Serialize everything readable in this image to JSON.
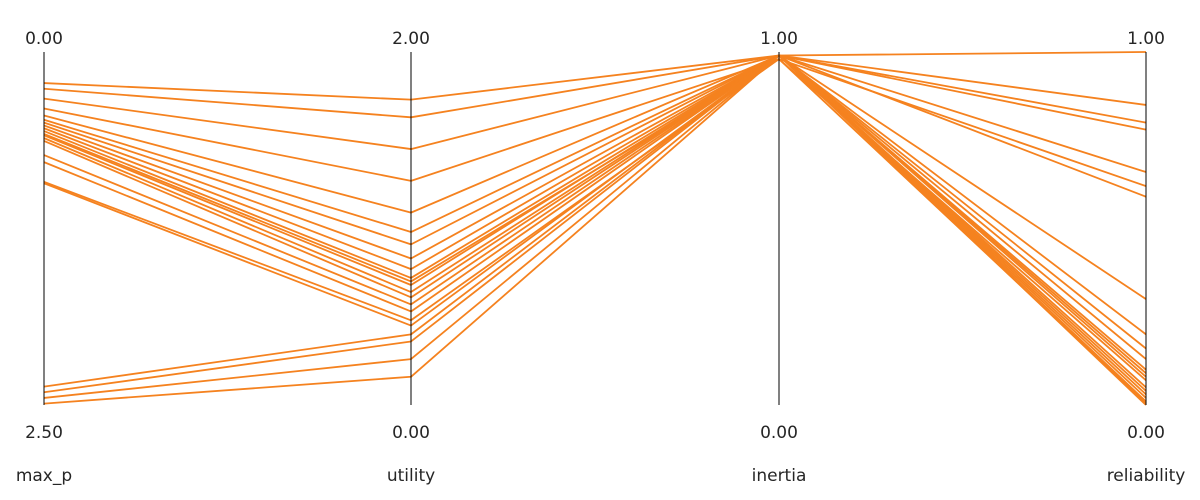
{
  "chart_data": {
    "type": "parallel_coordinates",
    "line_color": "#f5821f",
    "axes": [
      {
        "name": "max_p",
        "top": 0.0,
        "bottom": 2.5,
        "top_label": "0.00",
        "bottom_label": "2.50"
      },
      {
        "name": "utility",
        "top": 2.0,
        "bottom": 0.0,
        "top_label": "2.00",
        "bottom_label": "0.00"
      },
      {
        "name": "inertia",
        "top": 1.0,
        "bottom": 0.0,
        "top_label": "1.00",
        "bottom_label": "0.00"
      },
      {
        "name": "reliability",
        "top": 1.0,
        "bottom": 0.0,
        "top_label": "1.00",
        "bottom_label": "0.00"
      }
    ],
    "records": [
      {
        "max_p": 0.22,
        "utility": 1.73,
        "inertia": 0.99,
        "reliability": 1.0
      },
      {
        "max_p": 0.26,
        "utility": 1.63,
        "inertia": 0.99,
        "reliability": 0.8
      },
      {
        "max_p": 0.33,
        "utility": 1.45,
        "inertia": 0.99,
        "reliability": 0.78
      },
      {
        "max_p": 0.4,
        "utility": 1.27,
        "inertia": 0.98,
        "reliability": 0.62
      },
      {
        "max_p": 0.45,
        "utility": 1.09,
        "inertia": 0.99,
        "reliability": 0.59
      },
      {
        "max_p": 0.48,
        "utility": 0.98,
        "inertia": 0.99,
        "reliability": 0.3
      },
      {
        "max_p": 0.5,
        "utility": 0.91,
        "inertia": 0.99,
        "reliability": 0.2
      },
      {
        "max_p": 0.52,
        "utility": 0.83,
        "inertia": 0.99,
        "reliability": 0.16
      },
      {
        "max_p": 0.54,
        "utility": 0.77,
        "inertia": 0.99,
        "reliability": 0.13
      },
      {
        "max_p": 0.56,
        "utility": 0.72,
        "inertia": 0.99,
        "reliability": 0.1
      },
      {
        "max_p": 0.58,
        "utility": 0.7,
        "inertia": 0.98,
        "reliability": 0.07
      },
      {
        "max_p": 0.59,
        "utility": 0.68,
        "inertia": 0.99,
        "reliability": 0.05
      },
      {
        "max_p": 0.61,
        "utility": 0.64,
        "inertia": 0.99,
        "reliability": 0.04
      },
      {
        "max_p": 0.63,
        "utility": 0.61,
        "inertia": 0.99,
        "reliability": 0.03
      },
      {
        "max_p": 0.73,
        "utility": 0.57,
        "inertia": 0.99,
        "reliability": 0.02
      },
      {
        "max_p": 0.78,
        "utility": 0.53,
        "inertia": 0.99,
        "reliability": 0.01
      },
      {
        "max_p": 0.92,
        "utility": 0.48,
        "inertia": 0.98,
        "reliability": 0.005
      },
      {
        "max_p": 0.93,
        "utility": 0.45,
        "inertia": 0.99,
        "reliability": 0.0
      },
      {
        "max_p": 2.37,
        "utility": 0.4,
        "inertia": 0.99,
        "reliability": 0.85
      },
      {
        "max_p": 2.41,
        "utility": 0.36,
        "inertia": 0.99,
        "reliability": 0.66
      },
      {
        "max_p": 2.45,
        "utility": 0.26,
        "inertia": 0.99,
        "reliability": 0.09
      },
      {
        "max_p": 2.49,
        "utility": 0.16,
        "inertia": 0.99,
        "reliability": 0.08
      }
    ]
  }
}
